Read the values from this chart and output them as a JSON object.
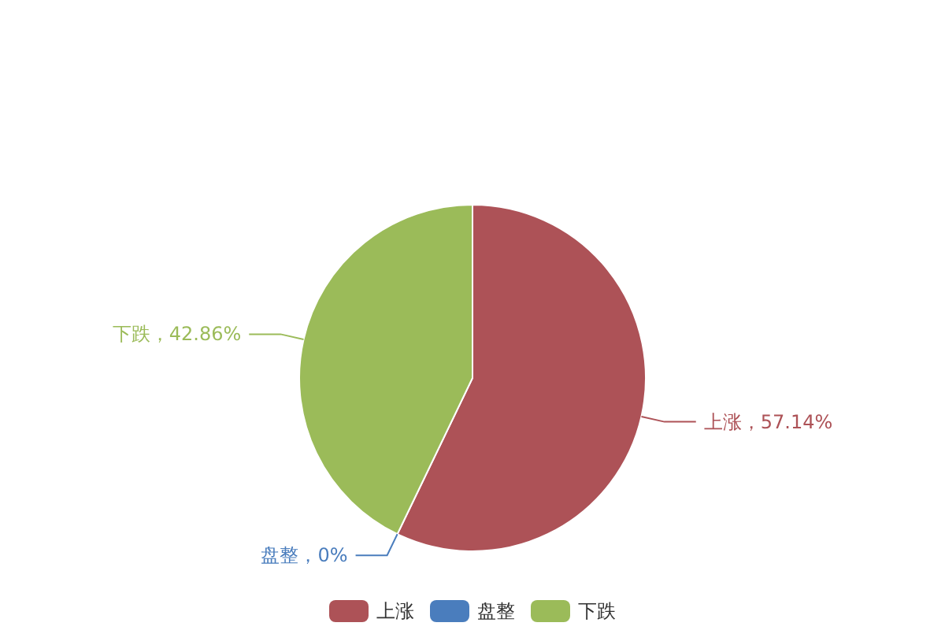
{
  "chart_data": {
    "type": "pie",
    "categories": [
      "上涨",
      "盘整",
      "下跌"
    ],
    "values": [
      57.14,
      0,
      42.86
    ],
    "colors": [
      "#ad5257",
      "#4a7dbd",
      "#9bbb59"
    ],
    "value_labels": [
      "上涨，57.14%",
      "盘整，0%",
      "下跌，42.86%"
    ],
    "legend": "bottom"
  }
}
